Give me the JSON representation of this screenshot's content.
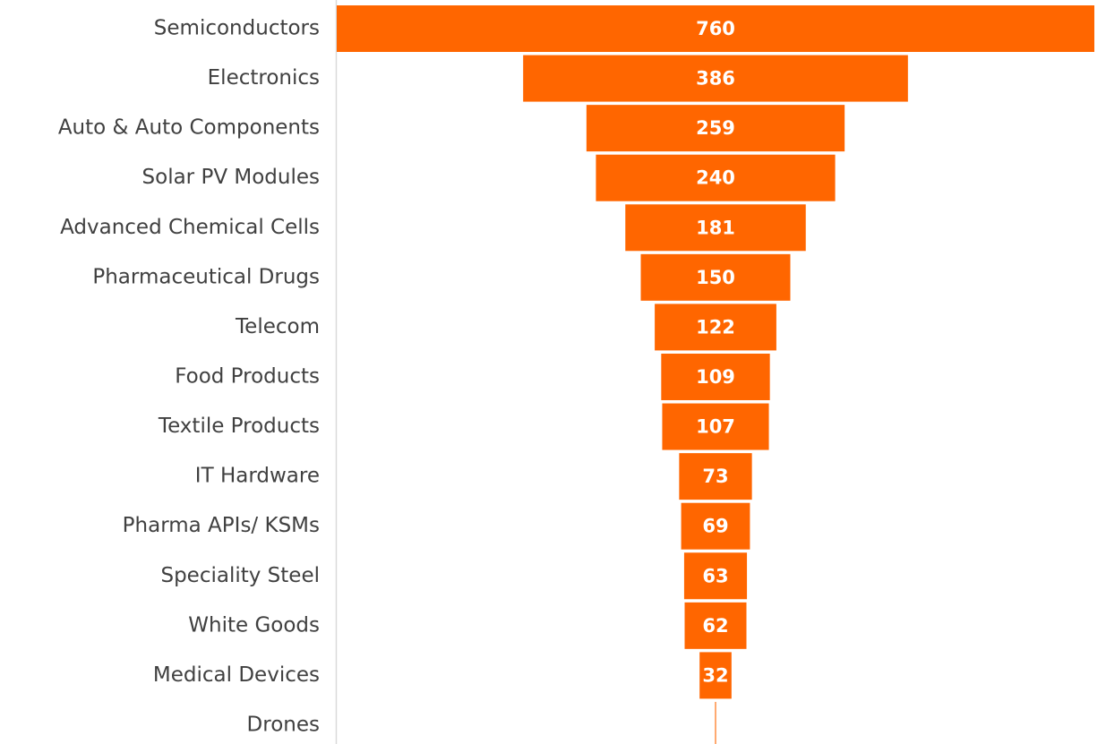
{
  "chart_data": {
    "type": "funnel",
    "categories": [
      "Semiconductors",
      "Electronics",
      "Auto & Auto Components",
      "Solar PV Modules",
      "Advanced Chemical Cells",
      "Pharmaceutical Drugs",
      "Telecom",
      "Food Products",
      "Textile Products",
      "IT Hardware",
      "Pharma APIs/ KSMs",
      "Speciality Steel",
      "White Goods",
      "Medical Devices",
      "Drones"
    ],
    "values": [
      760,
      386,
      259,
      240,
      181,
      150,
      122,
      109,
      107,
      73,
      69,
      63,
      62,
      32,
      1
    ],
    "color": "#ff6600"
  }
}
